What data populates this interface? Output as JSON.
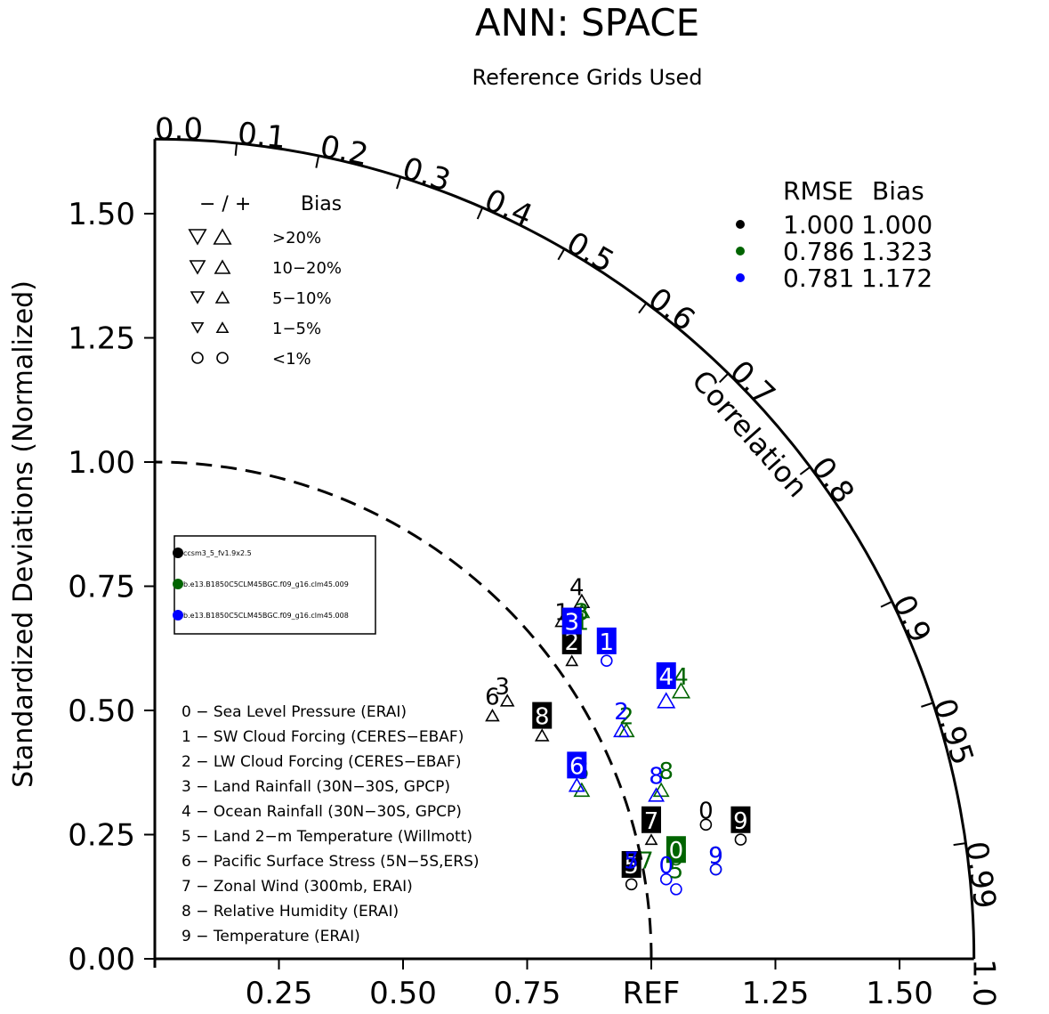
{
  "chart_data": {
    "type": "taylor-diagram",
    "title": "ANN: SPACE",
    "subtitle": "Reference Grids Used",
    "ylabel": "Standardized Deviations (Normalized)",
    "correlation_label": "Correlation",
    "ref_label": "REF",
    "stddev_range": [
      0,
      1.65
    ],
    "stddev_ticks": [
      "0.00",
      "0.25",
      "0.50",
      "0.75",
      "1.00",
      "1.25",
      "1.50"
    ],
    "x_ticks": [
      "0.25",
      "0.50",
      "0.75",
      "REF",
      "1.25",
      "1.50"
    ],
    "correlation_ticks": [
      {
        "value": 0.0,
        "label": "0.0"
      },
      {
        "value": 0.1,
        "label": "0.1"
      },
      {
        "value": 0.2,
        "label": "0.2"
      },
      {
        "value": 0.3,
        "label": "0.3"
      },
      {
        "value": 0.4,
        "label": "0.4"
      },
      {
        "value": 0.5,
        "label": "0.5"
      },
      {
        "value": 0.6,
        "label": "0.6"
      },
      {
        "value": 0.7,
        "label": "0.7"
      },
      {
        "value": 0.8,
        "label": "0.8"
      },
      {
        "value": 0.9,
        "label": "0.9"
      },
      {
        "value": 0.95,
        "label": "0.95"
      },
      {
        "value": 0.99,
        "label": "0.99"
      },
      {
        "value": 1.0,
        "label": "1.0"
      }
    ],
    "rmse_bias_table": {
      "headers": [
        "RMSE",
        "Bias"
      ],
      "rows": [
        {
          "color": "#000000",
          "rmse": "1.000",
          "bias": "1.000"
        },
        {
          "color": "#006400",
          "rmse": "0.786",
          "bias": "1.323"
        },
        {
          "color": "#0000ff",
          "rmse": "0.781",
          "bias": "1.172"
        }
      ]
    },
    "bias_legend": {
      "header_signs": "− / +",
      "header_label": "Bias",
      "rows": [
        {
          "label": ">20%",
          "size": 1.0
        },
        {
          "label": "10−20%",
          "size": 0.8
        },
        {
          "label": "5−10%",
          "size": 0.6
        },
        {
          "label": "1−5%",
          "size": 0.45
        },
        {
          "label": "<1%",
          "size": 0.0
        }
      ]
    },
    "cases": [
      {
        "name": "ccsm3_5_fv1.9x2.5",
        "color": "#000000"
      },
      {
        "name": "b.e13.B1850C5CLM45BGC.f09_g16.clm45.009",
        "color": "#006400"
      },
      {
        "name": "b.e13.B1850C5CLM45BGC.f09_g16.clm45.008",
        "color": "#0000ff"
      }
    ],
    "variables": [
      "0 − Sea Level Pressure (ERAI)",
      "1 − SW Cloud Forcing (CERES−EBAF)",
      "2 − LW Cloud Forcing (CERES−EBAF)",
      "3 − Land Rainfall (30N−30S, GPCP)",
      "4 − Ocean Rainfall (30N−30S, GPCP)",
      "5 − Land 2−m Temperature (Willmott)",
      "6 − Pacific Surface Stress (5N−5S,ERS)",
      "7 − Zonal Wind (300mb, ERAI)",
      "8 − Relative Humidity (ERAI)",
      "9 − Temperature (ERAI)"
    ],
    "series": [
      {
        "case": 0,
        "color": "#000000",
        "points": [
          {
            "id": "0",
            "x": 1.11,
            "y": 0.3,
            "boxed": false
          },
          {
            "id": "1",
            "x": 0.82,
            "y": 0.7,
            "boxed": false
          },
          {
            "id": "2",
            "x": 0.84,
            "y": 0.64,
            "boxed": true
          },
          {
            "id": "3",
            "x": 0.7,
            "y": 0.55,
            "boxed": false
          },
          {
            "id": "4",
            "x": 0.85,
            "y": 0.75,
            "boxed": false
          },
          {
            "id": "5",
            "x": 0.96,
            "y": 0.19,
            "boxed": true
          },
          {
            "id": "6",
            "x": 0.68,
            "y": 0.53,
            "boxed": false
          },
          {
            "id": "7",
            "x": 1.0,
            "y": 0.28,
            "boxed": true
          },
          {
            "id": "8",
            "x": 0.78,
            "y": 0.49,
            "boxed": true
          },
          {
            "id": "9",
            "x": 1.18,
            "y": 0.28,
            "boxed": true
          }
        ],
        "bias_markers": [
          {
            "id": "0",
            "x": 1.11,
            "y": 0.27,
            "kind": "circle",
            "size": 0.0
          },
          {
            "id": "1",
            "x": 0.82,
            "y": 0.68,
            "kind": "up",
            "size": 0.6
          },
          {
            "id": "2",
            "x": 0.84,
            "y": 0.6,
            "kind": "up",
            "size": 0.45
          },
          {
            "id": "3",
            "x": 0.71,
            "y": 0.52,
            "kind": "up",
            "size": 0.6
          },
          {
            "id": "4",
            "x": 0.86,
            "y": 0.72,
            "kind": "up",
            "size": 0.8
          },
          {
            "id": "5",
            "x": 0.96,
            "y": 0.15,
            "kind": "circle",
            "size": 0.0
          },
          {
            "id": "6",
            "x": 0.68,
            "y": 0.49,
            "kind": "up",
            "size": 0.6
          },
          {
            "id": "7",
            "x": 1.0,
            "y": 0.24,
            "kind": "up",
            "size": 0.45
          },
          {
            "id": "8",
            "x": 0.78,
            "y": 0.45,
            "kind": "up",
            "size": 0.6
          },
          {
            "id": "9",
            "x": 1.18,
            "y": 0.24,
            "kind": "circle",
            "size": 0.0
          }
        ]
      },
      {
        "case": 1,
        "color": "#006400",
        "points": [
          {
            "id": "0",
            "x": 1.05,
            "y": 0.22,
            "boxed": true
          },
          {
            "id": "1",
            "x": 0.86,
            "y": 0.68,
            "boxed": false
          },
          {
            "id": "2",
            "x": 0.95,
            "y": 0.49,
            "boxed": false
          },
          {
            "id": "3",
            "x": 0.86,
            "y": 0.7,
            "boxed": false
          },
          {
            "id": "4",
            "x": 1.06,
            "y": 0.57,
            "boxed": false
          },
          {
            "id": "5",
            "x": 1.05,
            "y": 0.18,
            "boxed": false
          },
          {
            "id": "6",
            "x": 0.86,
            "y": 0.38,
            "boxed": false
          },
          {
            "id": "7",
            "x": 0.99,
            "y": 0.2,
            "boxed": false
          },
          {
            "id": "8",
            "x": 1.03,
            "y": 0.38,
            "boxed": false
          },
          {
            "id": "9",
            "x": 1.13,
            "y": 0.21,
            "boxed": false
          }
        ],
        "bias_markers": [
          {
            "id": "0",
            "x": 1.05,
            "y": 0.2,
            "kind": "circle",
            "size": 0.0
          },
          {
            "id": "2",
            "x": 0.95,
            "y": 0.46,
            "kind": "up",
            "size": 0.8
          },
          {
            "id": "3",
            "x": 0.86,
            "y": 0.7,
            "kind": "up",
            "size": 0.8
          },
          {
            "id": "4",
            "x": 1.06,
            "y": 0.54,
            "kind": "up",
            "size": 1.0
          },
          {
            "id": "6",
            "x": 0.86,
            "y": 0.34,
            "kind": "up",
            "size": 0.8
          },
          {
            "id": "8",
            "x": 1.02,
            "y": 0.34,
            "kind": "up",
            "size": 0.8
          },
          {
            "id": "9",
            "x": 1.13,
            "y": 0.18,
            "kind": "circle",
            "size": 0.0
          }
        ]
      },
      {
        "case": 2,
        "color": "#0000ff",
        "points": [
          {
            "id": "0",
            "x": 1.03,
            "y": 0.19,
            "boxed": false
          },
          {
            "id": "1",
            "x": 0.91,
            "y": 0.64,
            "boxed": true
          },
          {
            "id": "2",
            "x": 0.94,
            "y": 0.5,
            "boxed": false
          },
          {
            "id": "3",
            "x": 0.84,
            "y": 0.68,
            "boxed": true
          },
          {
            "id": "4",
            "x": 1.03,
            "y": 0.57,
            "boxed": true
          },
          {
            "id": "5",
            "x": 0.96,
            "y": 0.2,
            "boxed": false
          },
          {
            "id": "6",
            "x": 0.85,
            "y": 0.39,
            "boxed": true
          },
          {
            "id": "7",
            "x": 0.96,
            "y": 0.2,
            "boxed": false
          },
          {
            "id": "8",
            "x": 1.01,
            "y": 0.37,
            "boxed": false
          },
          {
            "id": "9",
            "x": 1.13,
            "y": 0.21,
            "boxed": false
          }
        ],
        "bias_markers": [
          {
            "id": "0",
            "x": 1.05,
            "y": 0.14,
            "kind": "circle",
            "size": 0.0
          },
          {
            "id": "1",
            "x": 0.91,
            "y": 0.6,
            "kind": "circle",
            "size": 0.0
          },
          {
            "id": "2",
            "x": 0.94,
            "y": 0.46,
            "kind": "up",
            "size": 0.8
          },
          {
            "id": "3",
            "x": 0.84,
            "y": 0.66,
            "kind": "up",
            "size": 0.6
          },
          {
            "id": "4",
            "x": 1.03,
            "y": 0.52,
            "kind": "up",
            "size": 1.0
          },
          {
            "id": "5",
            "x": 1.03,
            "y": 0.16,
            "kind": "circle",
            "size": 0.0
          },
          {
            "id": "6",
            "x": 0.85,
            "y": 0.35,
            "kind": "up",
            "size": 0.8
          },
          {
            "id": "8",
            "x": 1.01,
            "y": 0.33,
            "kind": "up",
            "size": 0.8
          },
          {
            "id": "9",
            "x": 1.13,
            "y": 0.18,
            "kind": "circle",
            "size": 0.0
          }
        ]
      }
    ]
  }
}
